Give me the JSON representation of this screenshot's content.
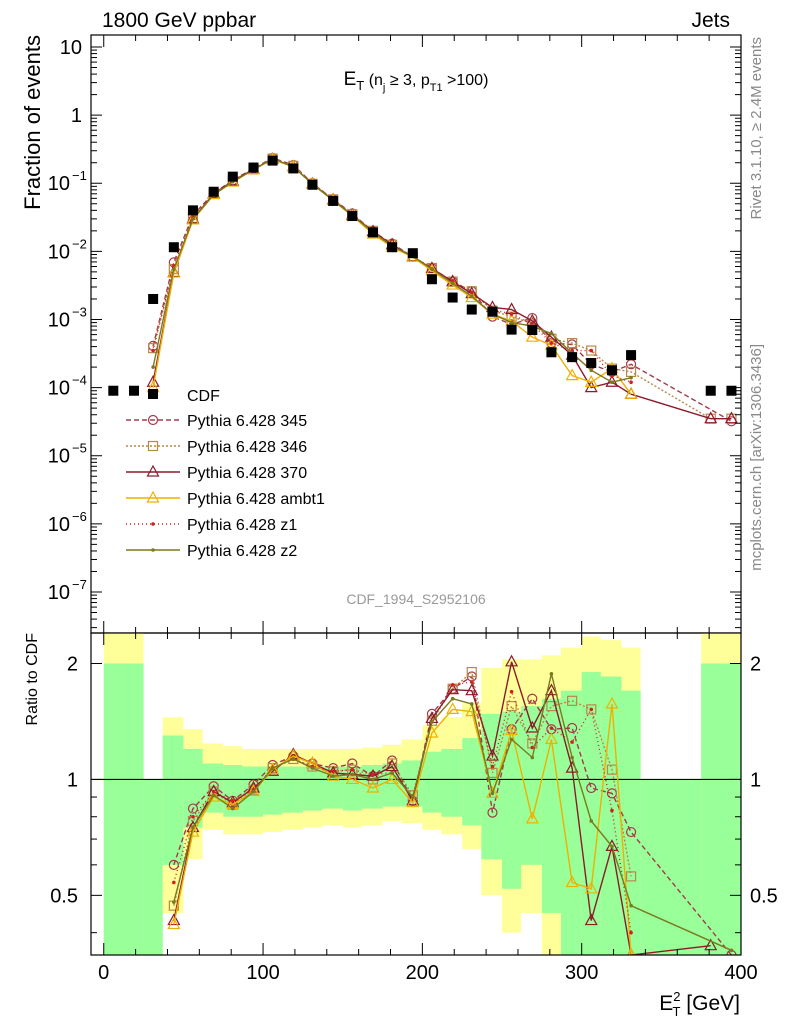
{
  "header": {
    "left": "1800 GeV ppbar",
    "right": "Jets"
  },
  "side_labels": {
    "rivet": "Rivet 3.1.10, ≥ 2.4M events",
    "mcplots": "mcplots.cern.ch [arXiv:1306.3436]"
  },
  "watermark": "CDF_1994_S2952106",
  "chart_data": [
    {
      "type": "line",
      "panel": "main",
      "title": {
        "base": "E",
        "base_sub": "T",
        "rest1": " (n",
        "rest1_sub": "j",
        "rest2": " ≥ 3, p",
        "rest2_sub": "T1",
        "rest3": " >100)"
      },
      "ylabel": "Fraction of events",
      "yscale": "log",
      "ylim": [
        2.5e-08,
        15
      ],
      "xlim": [
        -8,
        400
      ],
      "y_ticks": [
        {
          "v": 10,
          "label": "10"
        },
        {
          "v": 1,
          "label": "1"
        },
        {
          "v": 0.1,
          "label": "10",
          "exp": "−1"
        },
        {
          "v": 0.01,
          "label": "10",
          "exp": "−2"
        },
        {
          "v": 0.001,
          "label": "10",
          "exp": "−3"
        },
        {
          "v": 0.0001,
          "label": "10",
          "exp": "−4"
        },
        {
          "v": 1e-05,
          "label": "10",
          "exp": "−5"
        },
        {
          "v": 1e-06,
          "label": "10",
          "exp": "−6"
        },
        {
          "v": 1e-07,
          "label": "10",
          "exp": "−7"
        }
      ],
      "data": {
        "name": "CDF",
        "x": [
          6,
          19,
          31,
          44,
          56,
          69,
          81,
          94,
          106,
          119,
          131,
          144,
          156,
          169,
          181,
          194,
          206,
          219,
          231,
          244,
          256,
          269,
          281,
          294,
          306,
          319,
          331,
          381,
          394
        ],
        "y": [
          9e-05,
          9e-05,
          0.002,
          0.0115,
          0.04,
          0.075,
          0.125,
          0.17,
          0.215,
          0.165,
          0.095,
          0.055,
          0.033,
          0.019,
          0.0115,
          0.0094,
          0.0039,
          0.0021,
          0.0014,
          0.0013,
          0.00071,
          0.0007,
          0.00033,
          0.00028,
          0.00023,
          0.00018,
          0.0003,
          9e-05,
          9e-05
        ]
      },
      "series": [
        {
          "name": "Pythia 6.428 345",
          "color": "#a33a4a",
          "dash": "5,3",
          "marker": "circle",
          "x": [
            31,
            44,
            56,
            69,
            81,
            94,
            106,
            119,
            131,
            144,
            156,
            169,
            181,
            194,
            206,
            219,
            231,
            244,
            256,
            269,
            281,
            294,
            306,
            319,
            331,
            394
          ],
          "y": [
            0.00041,
            0.0069,
            0.034,
            0.072,
            0.11,
            0.165,
            0.235,
            0.185,
            0.1,
            0.058,
            0.036,
            0.0195,
            0.013,
            0.0083,
            0.0057,
            0.0036,
            0.0026,
            0.0011,
            0.00085,
            0.00105,
            0.00045,
            0.00043,
            0.00022,
            0.00017,
            0.00022,
            3.2e-05
          ]
        },
        {
          "name": "Pythia 6.428 346",
          "color": "#b8884a",
          "dash": "2,2",
          "marker": "square",
          "x": [
            31,
            44,
            56,
            69,
            81,
            94,
            106,
            119,
            131,
            144,
            156,
            169,
            181,
            194,
            206,
            219,
            231,
            244,
            256,
            269,
            281,
            294,
            306,
            319,
            331,
            381,
            394
          ],
          "y": [
            0.00038,
            0.0055,
            0.031,
            0.07,
            0.108,
            0.16,
            0.23,
            0.18,
            0.098,
            0.058,
            0.035,
            0.02,
            0.0125,
            0.0085,
            0.0057,
            0.0036,
            0.0026,
            0.00135,
            0.0011,
            0.00087,
            0.00052,
            0.00045,
            0.00035,
            0.00019,
            0.00017,
            3.5e-05,
            3.5e-05
          ]
        },
        {
          "name": "Pythia 6.428 370",
          "color": "#8b1a2b",
          "dash": "",
          "marker": "triangle",
          "x": [
            31,
            44,
            56,
            69,
            81,
            94,
            106,
            119,
            131,
            144,
            156,
            169,
            181,
            194,
            206,
            219,
            231,
            244,
            256,
            269,
            281,
            294,
            306,
            319,
            331,
            381,
            394
          ],
          "y": [
            0.00012,
            0.0049,
            0.03,
            0.07,
            0.108,
            0.16,
            0.225,
            0.175,
            0.098,
            0.057,
            0.034,
            0.0195,
            0.0125,
            0.0083,
            0.0056,
            0.0036,
            0.0024,
            0.0015,
            0.0014,
            0.00095,
            0.00055,
            0.0003,
            0.0001,
            0.00012,
            8e-05,
            3.5e-05,
            3.5e-05
          ]
        },
        {
          "name": "Pythia 6.428 ambt1",
          "color": "#f0b000",
          "dash": "",
          "marker": "triangle",
          "x": [
            31,
            44,
            56,
            69,
            81,
            94,
            106,
            119,
            131,
            144,
            156,
            169,
            181,
            194,
            206,
            219,
            231,
            244,
            256,
            269,
            281,
            294,
            306,
            319,
            331
          ],
          "y": [
            0.0001,
            0.0048,
            0.029,
            0.068,
            0.104,
            0.158,
            0.225,
            0.175,
            0.097,
            0.056,
            0.033,
            0.018,
            0.0115,
            0.0082,
            0.0052,
            0.0032,
            0.0021,
            0.0012,
            0.00095,
            0.00055,
            0.00042,
            0.00015,
            0.00012,
            0.00019,
            8e-05
          ]
        },
        {
          "name": "Pythia 6.428 z1",
          "color": "#d02020",
          "dash": "1,3",
          "marker": "dot",
          "x": [
            31,
            44,
            56,
            69,
            81,
            94,
            106,
            119,
            131,
            144,
            156,
            169,
            181,
            194,
            206,
            219,
            231,
            244,
            256,
            269,
            281,
            294,
            306,
            319,
            331
          ],
          "y": [
            0.00035,
            0.0062,
            0.032,
            0.07,
            0.11,
            0.16,
            0.23,
            0.18,
            0.099,
            0.058,
            0.035,
            0.0195,
            0.012,
            0.0085,
            0.0055,
            0.0037,
            0.0025,
            0.0014,
            0.0012,
            0.00085,
            0.00045,
            0.00035,
            0.00035,
            0.00015,
            0.00012
          ]
        },
        {
          "name": "Pythia 6.428 z2",
          "color": "#7a7a1f",
          "dash": "",
          "marker": "dot",
          "x": [
            31,
            44,
            56,
            69,
            81,
            94,
            106,
            119,
            131,
            144,
            156,
            169,
            181,
            194,
            206,
            219,
            231,
            244,
            256,
            269,
            281,
            294,
            306,
            319,
            331
          ],
          "y": [
            0.0002,
            0.0055,
            0.03,
            0.068,
            0.105,
            0.158,
            0.23,
            0.175,
            0.097,
            0.056,
            0.034,
            0.019,
            0.012,
            0.0084,
            0.0055,
            0.0034,
            0.0022,
            0.0012,
            0.0009,
            0.0008,
            0.00062,
            0.00032,
            0.00018,
            0.00012,
            0.00014
          ]
        }
      ]
    },
    {
      "type": "line",
      "panel": "ratio",
      "ylabel": "Ratio to CDF",
      "xlabel": {
        "base": "E",
        "sup": "2",
        "sub": "T",
        "unit": " [GeV]"
      },
      "yscale": "log",
      "ylim": [
        0.35,
        2.4
      ],
      "xlim": [
        -8,
        400
      ],
      "x_ticks": [
        0,
        100,
        200,
        300,
        400
      ],
      "y_ticks": [
        {
          "v": 2,
          "label": "2"
        },
        {
          "v": 1,
          "label": "1"
        },
        {
          "v": 0.5,
          "label": "0.5"
        }
      ],
      "bands": {
        "bins": [
          0,
          25,
          37,
          50,
          62,
          75,
          87,
          100,
          112,
          125,
          137,
          150,
          162,
          175,
          187,
          200,
          212,
          225,
          237,
          250,
          262,
          275,
          287,
          300,
          312,
          325,
          337,
          375,
          400
        ],
        "green_lo": [
          0.35,
          0.35,
          0.6,
          0.75,
          0.82,
          0.8,
          0.8,
          0.81,
          0.82,
          0.83,
          0.84,
          0.83,
          0.84,
          0.85,
          0.85,
          0.82,
          0.8,
          0.76,
          0.62,
          0.52,
          0.6,
          0.45,
          0.35,
          0.35,
          0.35,
          0.35,
          0.35,
          0.35
        ],
        "green_hi": [
          2.0,
          1.0,
          1.3,
          1.2,
          1.1,
          1.09,
          1.08,
          1.08,
          1.08,
          1.08,
          1.08,
          1.08,
          1.09,
          1.1,
          1.12,
          1.18,
          1.2,
          1.28,
          1.48,
          1.5,
          1.55,
          1.62,
          1.7,
          1.9,
          1.85,
          1.7,
          1.0,
          2.0
        ],
        "yellow_lo": [
          0.35,
          0.35,
          0.45,
          0.62,
          0.74,
          0.72,
          0.72,
          0.73,
          0.74,
          0.75,
          0.76,
          0.75,
          0.76,
          0.78,
          0.77,
          0.74,
          0.72,
          0.66,
          0.5,
          0.4,
          0.45,
          0.35,
          0.35,
          0.35,
          0.35,
          0.35,
          0.35,
          0.35
        ],
        "yellow_hi": [
          2.4,
          1.0,
          1.45,
          1.35,
          1.24,
          1.22,
          1.2,
          1.2,
          1.2,
          1.2,
          1.2,
          1.2,
          1.21,
          1.23,
          1.27,
          1.38,
          1.45,
          1.58,
          1.95,
          2.05,
          2.05,
          2.1,
          2.2,
          2.35,
          2.3,
          2.2,
          1.0,
          2.4
        ],
        "green_color": "#99ff99",
        "yellow_color": "#ffff99"
      },
      "series": [
        {
          "name": "Pythia 6.428 345",
          "x": [
            44,
            56,
            69,
            81,
            94,
            106,
            119,
            131,
            144,
            156,
            169,
            181,
            194,
            206,
            219,
            231,
            244,
            256,
            269,
            281,
            294,
            306,
            319,
            331,
            394
          ],
          "y": [
            0.6,
            0.84,
            0.96,
            0.88,
            0.97,
            1.09,
            1.15,
            1.1,
            1.07,
            1.1,
            1.02,
            1.12,
            0.88,
            1.48,
            1.72,
            1.85,
            0.82,
            1.35,
            1.62,
            1.35,
            1.36,
            0.95,
            0.92,
            0.73,
            0.35
          ]
        },
        {
          "name": "Pythia 6.428 346",
          "x": [
            44,
            56,
            69,
            81,
            94,
            106,
            119,
            131,
            144,
            156,
            169,
            181,
            194,
            206,
            219,
            231,
            244,
            256,
            269,
            281,
            294,
            306,
            319,
            331
          ],
          "y": [
            0.47,
            0.78,
            0.93,
            0.86,
            0.94,
            1.07,
            1.13,
            1.08,
            1.05,
            1.06,
            1.0,
            1.1,
            0.91,
            1.42,
            1.72,
            1.9,
            1.04,
            1.55,
            1.24,
            1.55,
            1.6,
            1.52,
            1.06,
            0.56
          ]
        },
        {
          "name": "Pythia 6.428 370",
          "x": [
            44,
            56,
            69,
            81,
            94,
            106,
            119,
            131,
            144,
            156,
            169,
            181,
            194,
            206,
            219,
            231,
            244,
            256,
            269,
            281,
            294,
            306,
            319,
            331,
            381
          ],
          "y": [
            0.43,
            0.75,
            0.93,
            0.87,
            0.95,
            1.05,
            1.16,
            1.1,
            1.04,
            1.03,
            1.02,
            1.08,
            0.88,
            1.44,
            1.71,
            1.7,
            1.15,
            2.02,
            1.36,
            1.7,
            1.07,
            0.43,
            0.67,
            0.27,
            0.37
          ]
        },
        {
          "name": "Pythia 6.428 ambt1",
          "x": [
            44,
            56,
            69,
            81,
            94,
            106,
            119,
            131,
            144,
            156,
            169,
            181,
            194,
            206,
            219,
            231,
            244,
            256,
            269,
            281,
            294,
            306,
            319,
            331
          ],
          "y": [
            0.42,
            0.73,
            0.9,
            0.86,
            0.93,
            1.06,
            1.15,
            1.1,
            1.02,
            1.0,
            0.95,
            1.0,
            0.87,
            1.32,
            1.52,
            1.5,
            0.92,
            1.34,
            0.79,
            1.27,
            0.54,
            0.52,
            1.57,
            0.27
          ]
        },
        {
          "name": "Pythia 6.428 z1",
          "x": [
            44,
            56,
            69,
            81,
            94,
            106,
            119,
            131,
            144,
            156,
            169,
            181,
            194,
            206,
            219,
            231,
            244,
            256,
            269,
            281,
            294,
            306,
            319,
            331
          ],
          "y": [
            0.54,
            0.8,
            0.93,
            0.88,
            0.94,
            1.07,
            1.13,
            1.08,
            1.05,
            1.06,
            1.03,
            1.04,
            0.9,
            1.41,
            1.76,
            1.79,
            1.08,
            1.69,
            1.21,
            1.36,
            1.25,
            1.52,
            0.83,
            0.4
          ]
        },
        {
          "name": "Pythia 6.428 z2",
          "x": [
            44,
            56,
            69,
            81,
            94,
            106,
            119,
            131,
            144,
            156,
            169,
            181,
            194,
            206,
            219,
            231,
            244,
            256,
            269,
            281,
            294,
            306,
            319,
            331,
            394
          ],
          "y": [
            0.48,
            0.75,
            0.91,
            0.84,
            0.93,
            1.07,
            1.13,
            1.07,
            1.02,
            1.03,
            1.0,
            1.04,
            0.9,
            1.41,
            1.62,
            1.57,
            0.92,
            1.27,
            1.14,
            1.88,
            1.14,
            0.78,
            0.67,
            0.47,
            0.36
          ]
        }
      ]
    }
  ]
}
